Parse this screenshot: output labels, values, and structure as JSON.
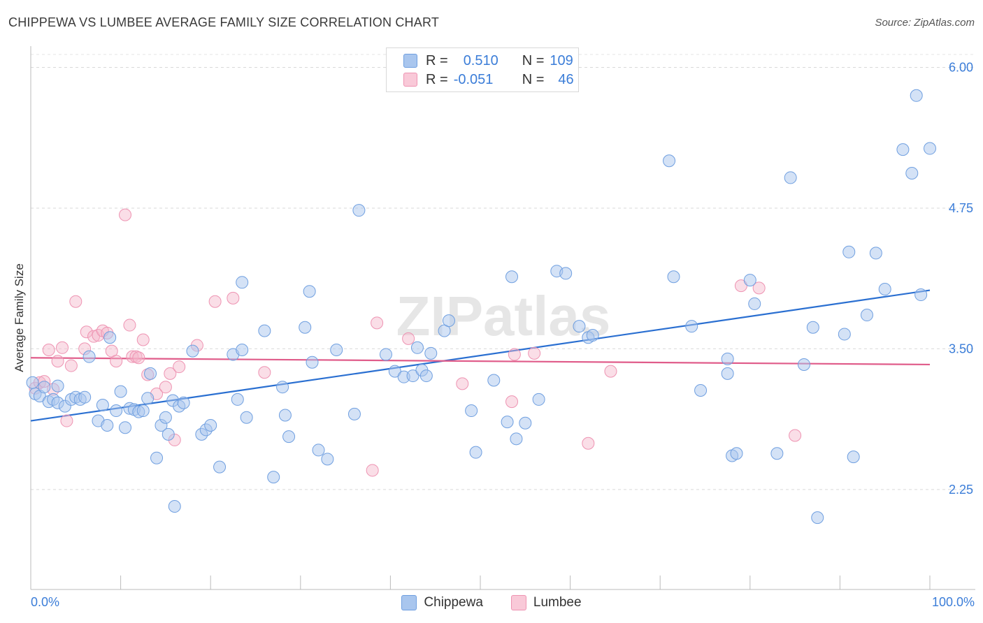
{
  "title": "CHIPPEWA VS LUMBEE AVERAGE FAMILY SIZE CORRELATION CHART",
  "source": "Source: ZipAtlas.com",
  "watermark": "ZIPatlas",
  "legend_stats": [
    {
      "r_label": "R =",
      "r_value": "0.510",
      "n_label": "N =",
      "n_value": "109"
    },
    {
      "r_label": "R =",
      "r_value": "-0.051",
      "n_label": "N =",
      "n_value": "46"
    }
  ],
  "chart_data": {
    "type": "scatter",
    "title": "CHIPPEWA VS LUMBEE AVERAGE FAMILY SIZE CORRELATION CHART",
    "xlabel": "",
    "ylabel": "Average Family Size",
    "x_tick_labels": [
      "0.0%",
      "100.0%"
    ],
    "y_tick_labels": [
      "2.25",
      "3.50",
      "4.75",
      "6.00"
    ],
    "y_ticks": [
      2.25,
      3.5,
      4.75,
      6.0
    ],
    "xlim": [
      0,
      100
    ],
    "ylim": [
      1.25,
      6.12
    ],
    "grid": "horizontal dashed",
    "legend_position": "bottom",
    "colors": {
      "Chippewa": "#a9c6ee",
      "Chippewa_line": "#2a6fd1",
      "Lumbee": "#f4b6c9",
      "Lumbee_line": "#e05c8a"
    },
    "series": [
      {
        "name": "Chippewa",
        "trend": [
          [
            0,
            2.86
          ],
          [
            100,
            4.02
          ]
        ],
        "points": [
          [
            0.5,
            3.1
          ],
          [
            1,
            3.08
          ],
          [
            1.5,
            3.16
          ],
          [
            2,
            3.03
          ],
          [
            2.5,
            3.05
          ],
          [
            3,
            3.02
          ],
          [
            3.8,
            2.99
          ],
          [
            4.5,
            3.05
          ],
          [
            5,
            3.07
          ],
          [
            5.5,
            3.05
          ],
          [
            6,
            3.07
          ],
          [
            6.5,
            3.43
          ],
          [
            7.5,
            2.86
          ],
          [
            8,
            3.0
          ],
          [
            8.5,
            2.82
          ],
          [
            8.8,
            3.6
          ],
          [
            9.5,
            2.95
          ],
          [
            10,
            3.12
          ],
          [
            10.5,
            2.8
          ],
          [
            11,
            2.97
          ],
          [
            11.5,
            2.96
          ],
          [
            12,
            2.94
          ],
          [
            12.5,
            2.95
          ],
          [
            13,
            3.06
          ],
          [
            13.3,
            3.28
          ],
          [
            14,
            2.53
          ],
          [
            14.5,
            2.82
          ],
          [
            15,
            2.89
          ],
          [
            15.3,
            2.74
          ],
          [
            15.8,
            3.04
          ],
          [
            16,
            2.1
          ],
          [
            16.5,
            2.99
          ],
          [
            17,
            3.02
          ],
          [
            18,
            3.48
          ],
          [
            19,
            2.74
          ],
          [
            19.5,
            2.78
          ],
          [
            20,
            2.82
          ],
          [
            21,
            2.45
          ],
          [
            22.5,
            3.45
          ],
          [
            23,
            3.05
          ],
          [
            23.5,
            3.49
          ],
          [
            23.5,
            4.09
          ],
          [
            24,
            2.89
          ],
          [
            26,
            3.66
          ],
          [
            27,
            2.36
          ],
          [
            28,
            3.16
          ],
          [
            28.3,
            2.91
          ],
          [
            28.7,
            2.72
          ],
          [
            30.5,
            3.69
          ],
          [
            31,
            4.01
          ],
          [
            31.3,
            3.38
          ],
          [
            32,
            2.6
          ],
          [
            33,
            2.52
          ],
          [
            34,
            3.49
          ],
          [
            36,
            2.92
          ],
          [
            36.5,
            4.73
          ],
          [
            39.5,
            3.45
          ],
          [
            40.5,
            3.3
          ],
          [
            41.5,
            3.25
          ],
          [
            42.5,
            3.26
          ],
          [
            43,
            3.51
          ],
          [
            43.5,
            3.31
          ],
          [
            44,
            3.26
          ],
          [
            44.5,
            3.46
          ],
          [
            46,
            3.66
          ],
          [
            46.5,
            3.75
          ],
          [
            49,
            2.95
          ],
          [
            49.5,
            2.58
          ],
          [
            51.5,
            3.22
          ],
          [
            53,
            2.85
          ],
          [
            53.5,
            4.14
          ],
          [
            54,
            2.7
          ],
          [
            55,
            2.84
          ],
          [
            56.5,
            3.05
          ],
          [
            58.5,
            4.19
          ],
          [
            59.5,
            4.17
          ],
          [
            61,
            3.7
          ],
          [
            62,
            3.6
          ],
          [
            62.5,
            3.62
          ],
          [
            71,
            5.17
          ],
          [
            71.5,
            4.14
          ],
          [
            73.5,
            3.7
          ],
          [
            74.5,
            3.13
          ],
          [
            77.5,
            3.41
          ],
          [
            77.5,
            3.28
          ],
          [
            78,
            2.55
          ],
          [
            78.5,
            2.57
          ],
          [
            80,
            4.11
          ],
          [
            80.5,
            3.9
          ],
          [
            83,
            2.57
          ],
          [
            84.5,
            5.02
          ],
          [
            86,
            3.36
          ],
          [
            87,
            3.69
          ],
          [
            87.5,
            2.0
          ],
          [
            90.5,
            3.63
          ],
          [
            91,
            4.36
          ],
          [
            91.5,
            2.54
          ],
          [
            93,
            3.8
          ],
          [
            94,
            4.35
          ],
          [
            95,
            4.03
          ],
          [
            97,
            5.27
          ],
          [
            98,
            5.06
          ],
          [
            98.5,
            5.75
          ],
          [
            99,
            3.98
          ],
          [
            100,
            5.28
          ],
          [
            0.2,
            3.2
          ],
          [
            3,
            3.17
          ]
        ]
      },
      {
        "name": "Lumbee",
        "trend": [
          [
            0,
            3.42
          ],
          [
            100,
            3.36
          ]
        ],
        "points": [
          [
            0.5,
            3.15
          ],
          [
            1,
            3.2
          ],
          [
            1.5,
            3.21
          ],
          [
            2,
            3.49
          ],
          [
            2.5,
            3.14
          ],
          [
            3,
            3.39
          ],
          [
            3.5,
            3.51
          ],
          [
            4,
            2.86
          ],
          [
            4.5,
            3.35
          ],
          [
            5,
            3.92
          ],
          [
            6,
            3.5
          ],
          [
            6.2,
            3.65
          ],
          [
            7,
            3.61
          ],
          [
            7.5,
            3.62
          ],
          [
            8,
            3.66
          ],
          [
            8.5,
            3.64
          ],
          [
            9,
            3.48
          ],
          [
            9.5,
            3.39
          ],
          [
            10.5,
            4.69
          ],
          [
            11,
            3.71
          ],
          [
            11.3,
            3.43
          ],
          [
            11.7,
            3.43
          ],
          [
            12,
            3.42
          ],
          [
            12.5,
            3.58
          ],
          [
            13,
            3.27
          ],
          [
            14,
            3.1
          ],
          [
            15,
            3.16
          ],
          [
            15.5,
            3.28
          ],
          [
            16,
            2.69
          ],
          [
            16.5,
            3.34
          ],
          [
            18.5,
            3.53
          ],
          [
            20.5,
            3.92
          ],
          [
            22.5,
            3.95
          ],
          [
            26,
            3.29
          ],
          [
            38,
            2.42
          ],
          [
            38.5,
            3.73
          ],
          [
            42,
            3.59
          ],
          [
            48,
            3.19
          ],
          [
            53.5,
            3.03
          ],
          [
            53.8,
            3.45
          ],
          [
            56,
            3.46
          ],
          [
            62,
            2.66
          ],
          [
            64.5,
            3.3
          ],
          [
            79,
            4.06
          ],
          [
            81,
            4.04
          ],
          [
            85,
            2.73
          ]
        ]
      }
    ]
  }
}
